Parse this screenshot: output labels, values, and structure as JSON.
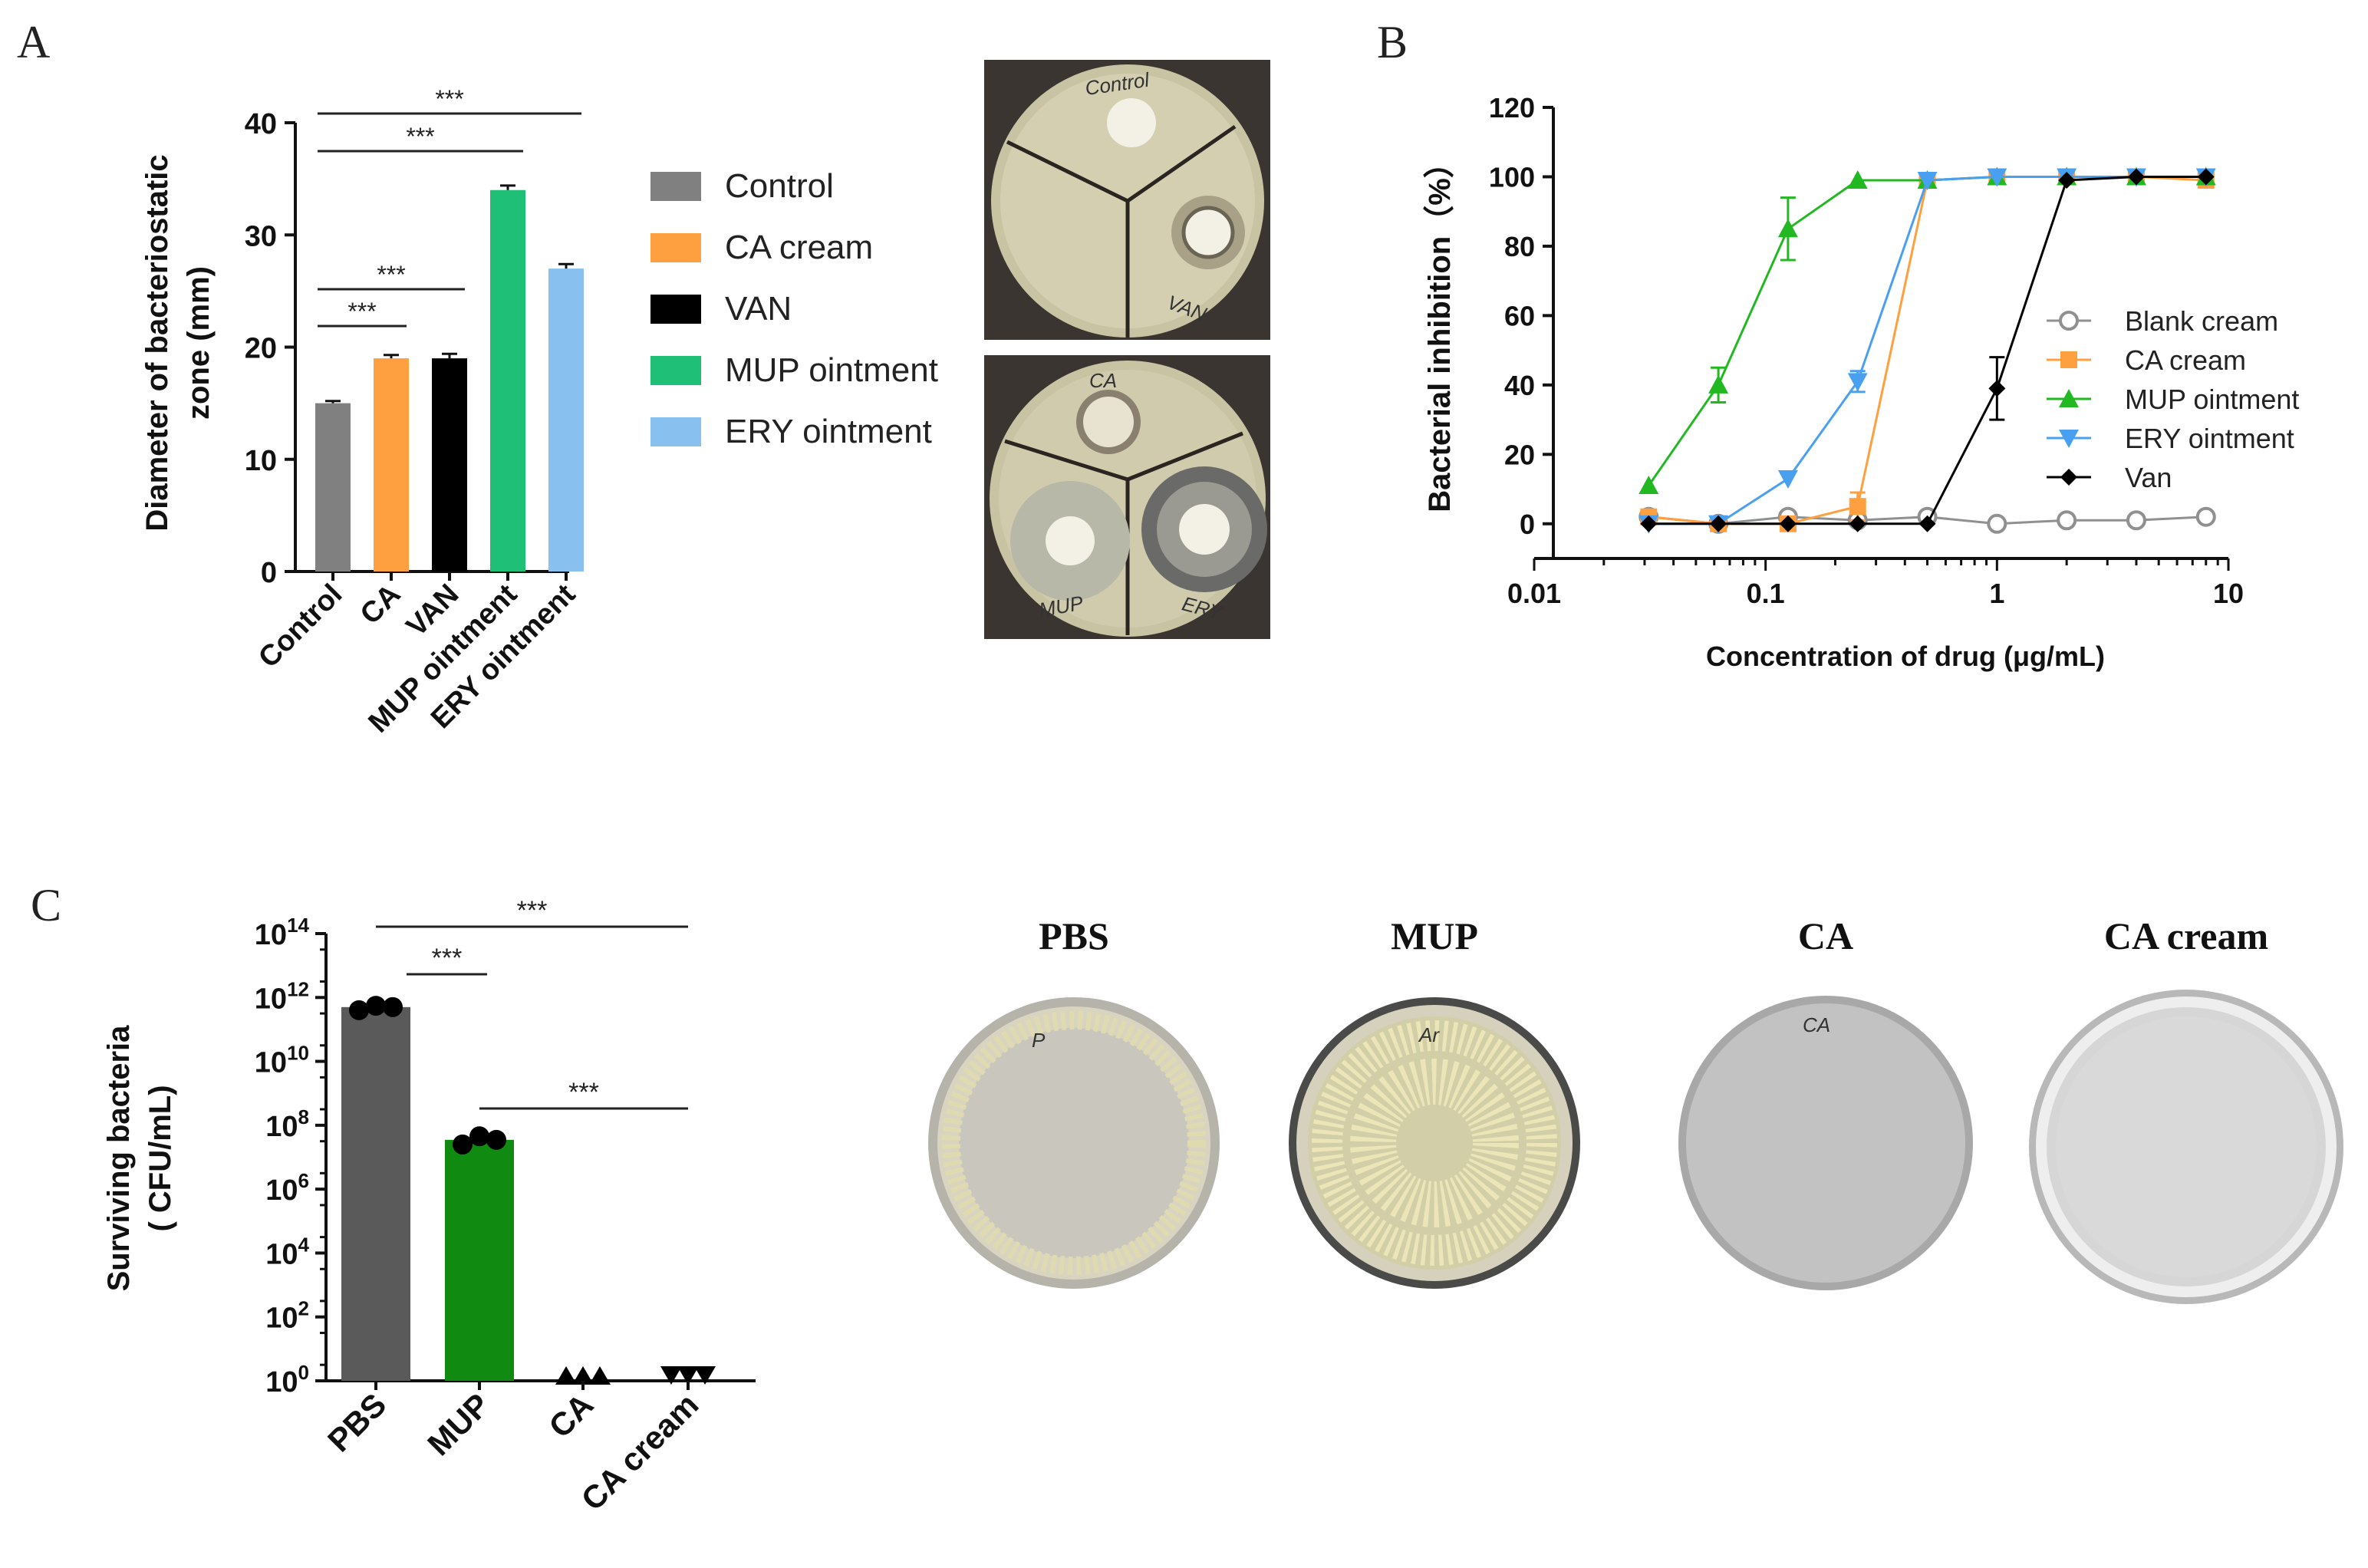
{
  "panels": {
    "a": "A",
    "b": "B",
    "c": "C"
  },
  "chart_data": [
    {
      "type": "bar",
      "ylabel_line1": "Diameter of bacteriostatic",
      "ylabel_line2": "zone (mm)",
      "ylim": [
        0,
        40
      ],
      "yticks": [
        0,
        10,
        20,
        30,
        40
      ],
      "categories": [
        "Control",
        "CA",
        "VAN",
        "MUP ointment",
        "ERY ointment"
      ],
      "values": [
        15,
        19,
        19,
        34,
        27
      ],
      "errors": [
        0.2,
        0.3,
        0.4,
        0.4,
        0.4
      ],
      "colors": [
        "#808080",
        "#ffa040",
        "#000000",
        "#1fbf78",
        "#88c0f0"
      ],
      "legend": [
        "Control",
        "CA cream",
        "VAN",
        "MUP ointment",
        "ERY ointment"
      ],
      "significance": [
        {
          "from": 0,
          "to": 1,
          "label": "***"
        },
        {
          "from": 0,
          "to": 2,
          "label": "***"
        },
        {
          "from": 0,
          "to": 3,
          "label": "***"
        },
        {
          "from": 0,
          "to": 4,
          "label": "***"
        }
      ]
    },
    {
      "type": "line",
      "xlabel": "Concentration of drug (μg/mL)",
      "ylabel": "Bacterial inhibition（%）",
      "xscale": "log",
      "xlim": [
        0.01,
        10
      ],
      "ylim": [
        -10,
        120
      ],
      "xticks": [
        0.01,
        0.1,
        1,
        10
      ],
      "xtick_labels": [
        "0.01",
        "0.1",
        "1",
        "10"
      ],
      "yticks": [
        0,
        20,
        40,
        60,
        80,
        100,
        120
      ],
      "legend_position": "right",
      "series": [
        {
          "name": "Blank cream",
          "color": "#909090",
          "marker": "circle-open",
          "x": [
            0.03125,
            0.0625,
            0.125,
            0.25,
            0.5,
            1,
            2,
            4,
            8
          ],
          "y": [
            2,
            0,
            2,
            1,
            2,
            0,
            1,
            1,
            2
          ],
          "err": [
            0,
            0,
            0,
            0,
            0,
            0,
            0,
            0,
            0
          ]
        },
        {
          "name": "CA cream",
          "color": "#ffa040",
          "marker": "square",
          "x": [
            0.03125,
            0.0625,
            0.125,
            0.25,
            0.5,
            1,
            2,
            4,
            8
          ],
          "y": [
            2,
            0,
            0,
            5,
            99,
            100,
            100,
            100,
            99
          ],
          "err": [
            0,
            0,
            0,
            4,
            0,
            0,
            0,
            0,
            0
          ]
        },
        {
          "name": "MUP ointment",
          "color": "#22b822",
          "marker": "triangle-up",
          "x": [
            0.03125,
            0.0625,
            0.125,
            0.25,
            0.5,
            1,
            2,
            4,
            8
          ],
          "y": [
            11,
            40,
            85,
            99,
            99,
            100,
            100,
            100,
            100
          ],
          "err": [
            0,
            5,
            9,
            0,
            0,
            0,
            0,
            0,
            0
          ]
        },
        {
          "name": "ERY ointment",
          "color": "#4aa0f0",
          "marker": "triangle-down",
          "x": [
            0.03125,
            0.0625,
            0.125,
            0.25,
            0.5,
            1,
            2,
            4,
            8
          ],
          "y": [
            0,
            0,
            13,
            41,
            99,
            100,
            100,
            100,
            100
          ],
          "err": [
            0,
            0,
            0,
            3,
            0,
            0,
            0,
            0,
            0
          ]
        },
        {
          "name": "Van",
          "color": "#000000",
          "marker": "diamond",
          "x": [
            0.03125,
            0.0625,
            0.125,
            0.25,
            0.5,
            1,
            2,
            4,
            8
          ],
          "y": [
            0,
            0,
            0,
            0,
            0,
            39,
            99,
            100,
            100
          ],
          "err": [
            0,
            0,
            0,
            0,
            0,
            9,
            0,
            0,
            0
          ]
        }
      ]
    },
    {
      "type": "bar",
      "ylabel_line1": "Surviving bacteria",
      "ylabel_line2": "( CFU/mL)",
      "yscale": "log",
      "ylim": [
        1,
        100000000000000.0
      ],
      "ytick_exponents": [
        0,
        2,
        4,
        6,
        8,
        10,
        12,
        14
      ],
      "ytick_base": "10",
      "categories": [
        "PBS",
        "MUP",
        "CA",
        "CA cream"
      ],
      "values": [
        500000000000.0,
        35000000.0,
        1,
        1
      ],
      "points": [
        [
          400000000000.0,
          550000000000.0,
          500000000000.0
        ],
        [
          25000000.0,
          45000000.0,
          35000000.0
        ],
        [
          1,
          1,
          1
        ],
        [
          1,
          1,
          1
        ]
      ],
      "colors": [
        "#5a5a5a",
        "#118a11",
        "#000000",
        "#000000"
      ],
      "significance": [
        {
          "from": 0,
          "to": 1,
          "label": "***"
        },
        {
          "from": 0,
          "to": 3,
          "label": "***"
        },
        {
          "from": 1,
          "to": 3,
          "label": "***"
        }
      ]
    }
  ],
  "plates_a": {
    "top": {
      "labels": [
        "Control",
        "VAN"
      ]
    },
    "bottom": {
      "labels": [
        "CA",
        "MUP",
        "ERY"
      ]
    }
  },
  "plates_c": {
    "titles": [
      "PBS",
      "MUP",
      "CA",
      "CA cream"
    ],
    "marks": [
      "P",
      "Ar",
      "CA",
      ""
    ]
  }
}
